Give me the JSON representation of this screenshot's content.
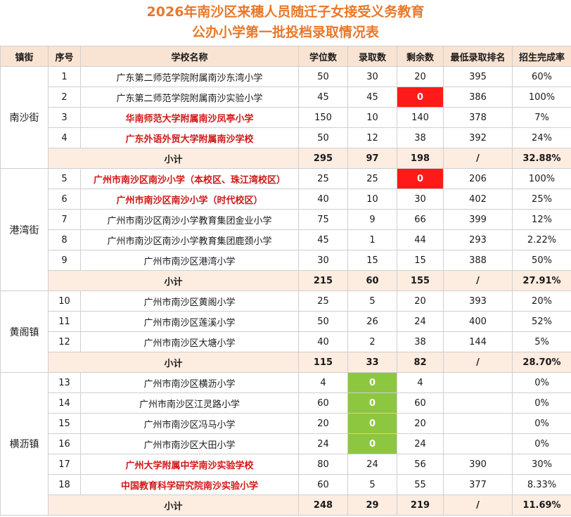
{
  "title_line1": "2026年南沙区来穗人员随迁子女接受义务教育",
  "title_line2": "公办小学第一批投档录取情况表",
  "headers": [
    "镇街",
    "序号",
    "学校名称",
    "学位数",
    "录取数",
    "剩余数",
    "最低录取排名",
    "招生完成率"
  ],
  "colors": {
    "title": "#e8782a",
    "header_bg": "#f9e3d2",
    "subtotal_bg": "#fdece0",
    "highlight_red": "#ff1a1a",
    "highlight_green": "#8dc63f",
    "school_red": "#d01818"
  },
  "groups": [
    {
      "district": "南沙街",
      "rows": [
        {
          "no": "1",
          "school": "广东第二师范学院附属南沙东湾小学",
          "seats": "50",
          "admitted": "30",
          "remaining": "20",
          "rank": "395",
          "rate": "60%"
        },
        {
          "no": "2",
          "school": "广东第二师范学院附属南沙实验小学",
          "seats": "45",
          "admitted": "45",
          "remaining": "0",
          "rank": "386",
          "rate": "100%"
        },
        {
          "no": "3",
          "school": "华南师范大学附属南沙凤亭小学",
          "seats": "150",
          "admitted": "10",
          "remaining": "140",
          "rank": "378",
          "rate": "7%"
        },
        {
          "no": "4",
          "school": "广东外语外贸大学附属南沙学校",
          "seats": "50",
          "admitted": "12",
          "remaining": "38",
          "rank": "392",
          "rate": "24%"
        }
      ],
      "subtotal": {
        "label": "小计",
        "seats": "295",
        "admitted": "97",
        "remaining": "198",
        "rank": "/",
        "rate": "32.88%"
      }
    },
    {
      "district": "港湾街",
      "rows": [
        {
          "no": "5",
          "school": "广州市南沙区南沙小学（本校区、珠江湾校区）",
          "seats": "25",
          "admitted": "25",
          "remaining": "0",
          "rank": "206",
          "rate": "100%"
        },
        {
          "no": "6",
          "school": "广州市南沙区南沙小学（时代校区）",
          "seats": "40",
          "admitted": "10",
          "remaining": "30",
          "rank": "402",
          "rate": "25%"
        },
        {
          "no": "7",
          "school": "广州市南沙区南沙小学教育集团金业小学",
          "seats": "75",
          "admitted": "9",
          "remaining": "66",
          "rank": "399",
          "rate": "12%"
        },
        {
          "no": "8",
          "school": "广州市南沙区南沙小学教育集团鹿颈小学",
          "seats": "45",
          "admitted": "1",
          "remaining": "44",
          "rank": "293",
          "rate": "2.22%"
        },
        {
          "no": "9",
          "school": "广州市南沙区港湾小学",
          "seats": "30",
          "admitted": "15",
          "remaining": "15",
          "rank": "388",
          "rate": "50%"
        }
      ],
      "subtotal": {
        "label": "小计",
        "seats": "215",
        "admitted": "60",
        "remaining": "155",
        "rank": "/",
        "rate": "27.91%"
      }
    },
    {
      "district": "黄阁镇",
      "rows": [
        {
          "no": "10",
          "school": "广州市南沙区黄阁小学",
          "seats": "25",
          "admitted": "5",
          "remaining": "20",
          "rank": "393",
          "rate": "20%"
        },
        {
          "no": "11",
          "school": "广州市南沙区莲溪小学",
          "seats": "50",
          "admitted": "26",
          "remaining": "24",
          "rank": "400",
          "rate": "52%"
        },
        {
          "no": "12",
          "school": "广州市南沙区大塘小学",
          "seats": "40",
          "admitted": "2",
          "remaining": "38",
          "rank": "144",
          "rate": "5%"
        }
      ],
      "subtotal": {
        "label": "小计",
        "seats": "115",
        "admitted": "33",
        "remaining": "82",
        "rank": "/",
        "rate": "28.70%"
      }
    },
    {
      "district": "横沥镇",
      "rows": [
        {
          "no": "13",
          "school": "广州市南沙区横沥小学",
          "seats": "4",
          "admitted": "0",
          "remaining": "4",
          "rank": "",
          "rate": "0%"
        },
        {
          "no": "14",
          "school": "广州市南沙区江灵路小学",
          "seats": "60",
          "admitted": "0",
          "remaining": "60",
          "rank": "",
          "rate": "0%"
        },
        {
          "no": "15",
          "school": "广州市南沙区冯马小学",
          "seats": "20",
          "admitted": "0",
          "remaining": "20",
          "rank": "",
          "rate": "0%"
        },
        {
          "no": "16",
          "school": "广州市南沙区大田小学",
          "seats": "24",
          "admitted": "0",
          "remaining": "24",
          "rank": "",
          "rate": "0%"
        },
        {
          "no": "17",
          "school": "广州大学附属中学南沙实验学校",
          "seats": "80",
          "admitted": "24",
          "remaining": "56",
          "rank": "390",
          "rate": "30%"
        },
        {
          "no": "18",
          "school": "中国教育科学研究院南沙实验小学",
          "seats": "60",
          "admitted": "5",
          "remaining": "55",
          "rank": "377",
          "rate": "8.33%"
        }
      ],
      "subtotal": {
        "label": "小计",
        "seats": "248",
        "admitted": "29",
        "remaining": "219",
        "rank": "/",
        "rate": "11.69%"
      }
    }
  ]
}
